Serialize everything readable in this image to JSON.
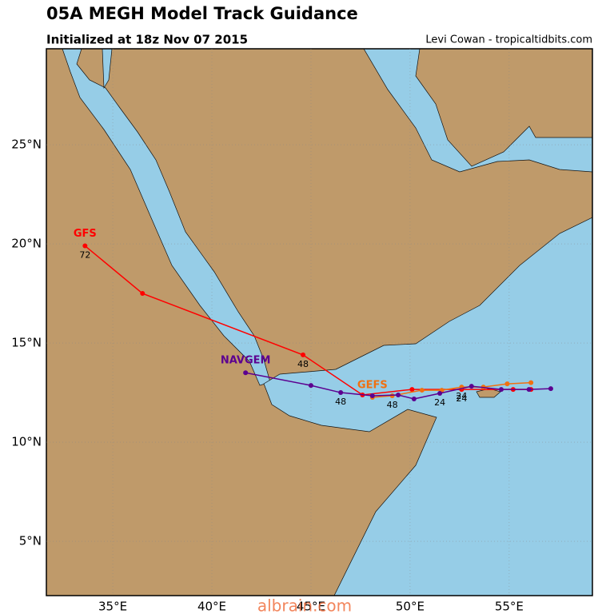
{
  "chart_data": {
    "type": "line",
    "title": "05A MEGH Model Track Guidance",
    "subtitle": "Initialized at 18z Nov 07 2015",
    "credit": "Levi Cowan - tropicaltidbits.com",
    "watermark": "albrain.com",
    "xlim": [
      31.65,
      59.2
    ],
    "ylim": [
      2.26,
      29.84
    ],
    "xticks": [
      {
        "value": 35,
        "label": "35°E"
      },
      {
        "value": 40,
        "label": "40°E"
      },
      {
        "value": 45,
        "label": "45°E"
      },
      {
        "value": 50,
        "label": "50°E"
      },
      {
        "value": 55,
        "label": "55°E"
      }
    ],
    "yticks": [
      {
        "value": 5,
        "label": "5°N"
      },
      {
        "value": 10,
        "label": "10°N"
      },
      {
        "value": 15,
        "label": "15°N"
      },
      {
        "value": 20,
        "label": "20°N"
      },
      {
        "value": 25,
        "label": "25°N"
      }
    ],
    "grid": true,
    "series": [
      {
        "name": "GFS",
        "color": "#ff0000",
        "x": [
          56.1,
          55.2,
          52.6,
          50.1,
          47.6,
          44.6,
          36.5,
          33.6
        ],
        "values": [
          12.66,
          12.66,
          12.66,
          12.66,
          12.38,
          14.4,
          17.5,
          19.9
        ],
        "hour_labels": [
          null,
          null,
          "24",
          null,
          null,
          "48",
          null,
          "72"
        ]
      },
      {
        "name": "GEFS",
        "color": "#f07010",
        "x": [
          56.1,
          54.9,
          53.7,
          52.6,
          51.6,
          50.6,
          49.1,
          48.1
        ],
        "values": [
          13.0,
          12.94,
          12.78,
          12.78,
          12.62,
          12.62,
          12.34,
          12.26
        ],
        "hour_labels": [
          null,
          null,
          null,
          "24",
          null,
          null,
          "48",
          null
        ]
      },
      {
        "name": "NAVGEM",
        "color": "#5c0090",
        "x": [
          57.1,
          56.0,
          54.6,
          53.1,
          51.5,
          50.2,
          49.4,
          48.1,
          46.5,
          45.0,
          41.7
        ],
        "values": [
          12.7,
          12.66,
          12.66,
          12.82,
          12.46,
          12.18,
          12.38,
          12.34,
          12.5,
          12.86,
          13.5
        ],
        "hour_labels": [
          null,
          null,
          null,
          null,
          "24",
          null,
          null,
          null,
          "48",
          null,
          null
        ]
      }
    ]
  }
}
